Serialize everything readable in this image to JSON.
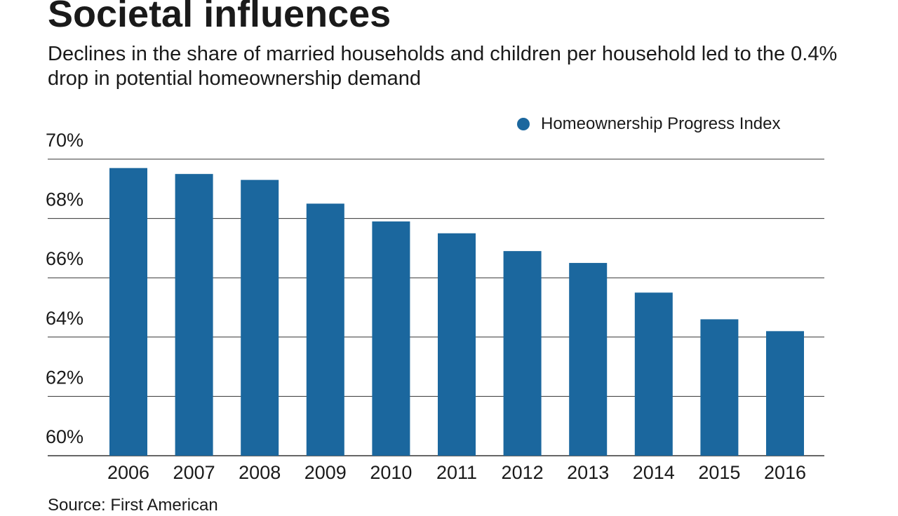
{
  "title": "Societal influences",
  "subtitle": "Declines in the share of married households and children per household led to the 0.4% drop in potential homeownership demand",
  "source": "Source: First American",
  "colors": {
    "bar": "#1b679e",
    "grid": "#333333"
  },
  "chart_data": {
    "type": "bar",
    "title": "Societal influences",
    "xlabel": "",
    "ylabel": "",
    "categories": [
      "2006",
      "2007",
      "2008",
      "2009",
      "2010",
      "2011",
      "2012",
      "2013",
      "2014",
      "2015",
      "2016"
    ],
    "series": [
      {
        "name": "Homeownership Progress Index",
        "values": [
          69.7,
          69.5,
          69.3,
          68.5,
          67.9,
          67.5,
          66.9,
          66.5,
          65.5,
          64.6,
          64.2
        ]
      }
    ],
    "yticks": [
      60,
      62,
      64,
      66,
      68,
      70
    ],
    "ytick_labels": [
      "60%",
      "62%",
      "64%",
      "66%",
      "68%",
      "70%"
    ],
    "ylim": [
      60,
      70
    ],
    "grid": true,
    "legend_position": "top-right"
  }
}
